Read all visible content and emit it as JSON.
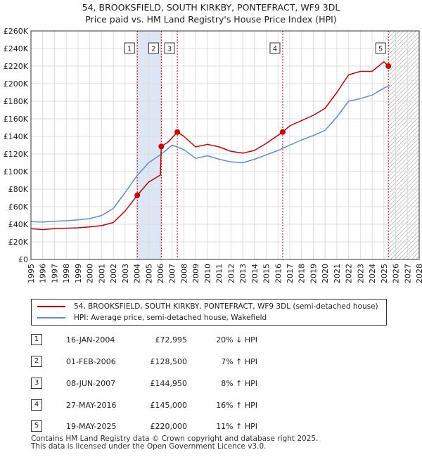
{
  "title_line1": "54, BROOKSFIELD, SOUTH KIRKBY, PONTEFRACT, WF9 3DL",
  "title_line2": "Price paid vs. HM Land Registry's House Price Index (HPI)",
  "colors": {
    "property": "#cc0000",
    "hpi": "#5b8fd0",
    "shade": "#dde6f5",
    "grid": "#dddddd"
  },
  "legend": {
    "property": "54, BROOKSFIELD, SOUTH KIRKBY, PONTEFRACT, WF9 3DL (semi-detached house)",
    "hpi": "HPI: Average price, semi-detached house, Wakefield"
  },
  "sales": [
    {
      "num": "1",
      "date": "16-JAN-2004",
      "price": "£72,995",
      "hpi": "20% ↓ HPI"
    },
    {
      "num": "2",
      "date": "01-FEB-2006",
      "price": "£128,500",
      "hpi": "7% ↑ HPI"
    },
    {
      "num": "3",
      "date": "08-JUN-2007",
      "price": "£144,950",
      "hpi": "8% ↑ HPI"
    },
    {
      "num": "4",
      "date": "27-MAY-2016",
      "price": "£145,000",
      "hpi": "16% ↑ HPI"
    },
    {
      "num": "5",
      "date": "19-MAY-2025",
      "price": "£220,000",
      "hpi": "11% ↑ HPI"
    }
  ],
  "footer_line1": "Contains HM Land Registry data © Crown copyright and database right 2025.",
  "footer_line2": "This data is licensed under the Open Government Licence v3.0.",
  "chart_data": {
    "type": "line",
    "xlim": [
      1995,
      2028
    ],
    "ylim": [
      0,
      260000
    ],
    "x_ticks": [
      "1995",
      "1996",
      "1997",
      "1998",
      "1999",
      "2000",
      "2001",
      "2002",
      "2003",
      "2004",
      "2005",
      "2006",
      "2007",
      "2008",
      "2009",
      "2010",
      "2011",
      "2012",
      "2013",
      "2014",
      "2015",
      "2016",
      "2017",
      "2018",
      "2019",
      "2020",
      "2021",
      "2022",
      "2023",
      "2024",
      "2025",
      "2026",
      "2027",
      "2028"
    ],
    "y_ticks": [
      0,
      20000,
      40000,
      60000,
      80000,
      100000,
      120000,
      140000,
      160000,
      180000,
      200000,
      220000,
      240000,
      260000
    ],
    "y_tick_labels": [
      "£0",
      "£20K",
      "£40K",
      "£60K",
      "£80K",
      "£100K",
      "£120K",
      "£140K",
      "£160K",
      "£180K",
      "£200K",
      "£220K",
      "£240K",
      "£260K"
    ],
    "shaded_periods": [
      [
        2004.04,
        2006.08
      ],
      [
        2007.44,
        2007.44
      ],
      [
        2016.4,
        2016.4
      ]
    ],
    "forecast_from": 2025.4,
    "sale_markers": [
      {
        "label": "1",
        "x": 2004.04,
        "y": 72995
      },
      {
        "label": "2",
        "x": 2006.08,
        "y": 128500
      },
      {
        "label": "3",
        "x": 2007.44,
        "y": 144950
      },
      {
        "label": "4",
        "x": 2016.4,
        "y": 145000
      },
      {
        "label": "5",
        "x": 2025.38,
        "y": 220000
      }
    ],
    "series": [
      {
        "name": "54, BROOKSFIELD, SOUTH KIRKBY, PONTEFRACT, WF9 3DL (semi-detached house)",
        "color": "#cc0000",
        "points": [
          [
            1995,
            35000
          ],
          [
            1996,
            34000
          ],
          [
            1997,
            35000
          ],
          [
            1998,
            35500
          ],
          [
            1999,
            36000
          ],
          [
            2000,
            37000
          ],
          [
            2001,
            38500
          ],
          [
            2002,
            42000
          ],
          [
            2003,
            55000
          ],
          [
            2004.04,
            72995
          ],
          [
            2005,
            88000
          ],
          [
            2006.0,
            96000
          ],
          [
            2006.08,
            128500
          ],
          [
            2006.7,
            134000
          ],
          [
            2007.44,
            144950
          ],
          [
            2008,
            140000
          ],
          [
            2009,
            128000
          ],
          [
            2010,
            131000
          ],
          [
            2011,
            128000
          ],
          [
            2012,
            123000
          ],
          [
            2013,
            121000
          ],
          [
            2014,
            124000
          ],
          [
            2015,
            132000
          ],
          [
            2016.4,
            145000
          ],
          [
            2017,
            152000
          ],
          [
            2018,
            158000
          ],
          [
            2019,
            164000
          ],
          [
            2020,
            172000
          ],
          [
            2021,
            190000
          ],
          [
            2022,
            210000
          ],
          [
            2023,
            214000
          ],
          [
            2024,
            214000
          ],
          [
            2025,
            225000
          ],
          [
            2025.38,
            220000
          ]
        ]
      },
      {
        "name": "HPI: Average price, semi-detached house, Wakefield",
        "color": "#5b8fd0",
        "points": [
          [
            1995,
            43000
          ],
          [
            1996,
            42500
          ],
          [
            1997,
            43500
          ],
          [
            1998,
            44000
          ],
          [
            1999,
            45000
          ],
          [
            2000,
            46500
          ],
          [
            2001,
            50000
          ],
          [
            2002,
            58000
          ],
          [
            2003,
            76000
          ],
          [
            2004,
            95000
          ],
          [
            2005,
            110000
          ],
          [
            2006,
            119000
          ],
          [
            2007,
            130000
          ],
          [
            2008,
            125000
          ],
          [
            2009,
            115000
          ],
          [
            2010,
            118000
          ],
          [
            2011,
            114000
          ],
          [
            2012,
            111000
          ],
          [
            2013,
            110000
          ],
          [
            2014,
            114000
          ],
          [
            2015,
            119000
          ],
          [
            2016,
            124000
          ],
          [
            2017,
            130000
          ],
          [
            2018,
            136000
          ],
          [
            2019,
            141000
          ],
          [
            2020,
            147000
          ],
          [
            2021,
            162000
          ],
          [
            2022,
            180000
          ],
          [
            2023,
            183000
          ],
          [
            2024,
            187000
          ],
          [
            2025,
            195000
          ],
          [
            2025.5,
            198000
          ]
        ]
      }
    ]
  }
}
